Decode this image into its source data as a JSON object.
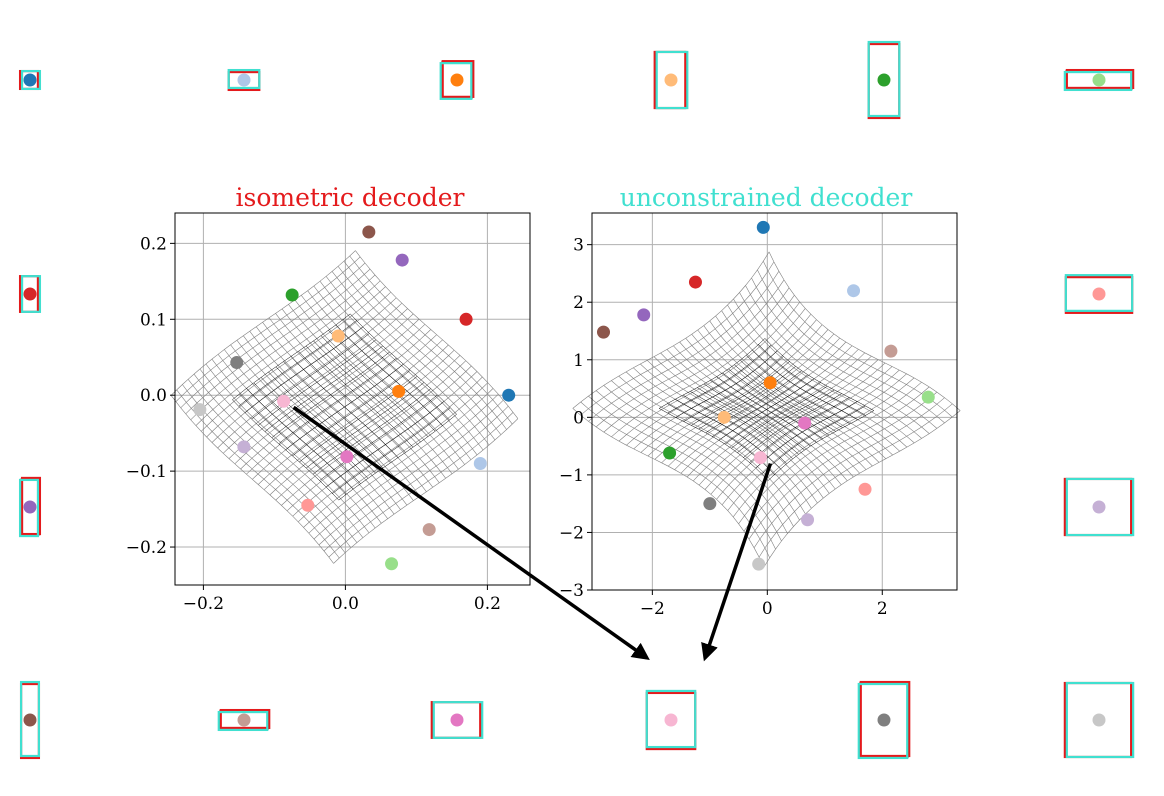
{
  "colors": {
    "isometric": "#e41a1c",
    "unconstrained": "#40e0d0",
    "ground_truth": "#000000",
    "mesh": "#808080",
    "grid": "#b0b0b0",
    "points": [
      "#1f77b4",
      "#aec7e8",
      "#ff7f0e",
      "#ffbb78",
      "#2ca02c",
      "#98df8a",
      "#d62728",
      "#ff9896",
      "#9467bd",
      "#c5b0d5",
      "#8c564b",
      "#c49c94",
      "#e377c2",
      "#f7b6d2",
      "#7f7f7f",
      "#c7c7c7"
    ]
  },
  "chart_data": [
    {
      "type": "scatter",
      "title": "isometric decoder",
      "title_color": "#e41a1c",
      "xlim": [
        -0.24,
        0.26
      ],
      "ylim": [
        -0.25,
        0.24
      ],
      "xticks": [
        -0.2,
        0.0,
        0.2
      ],
      "xtick_labels": [
        "−0.2",
        "0.0",
        "0.2"
      ],
      "yticks": [
        -0.2,
        -0.1,
        0.0,
        0.1,
        0.2
      ],
      "ytick_labels": [
        "−0.2",
        "−0.1",
        "0.0",
        "0.1",
        "0.2"
      ],
      "grid": true,
      "points": [
        {
          "x": 0.23,
          "y": 0.0,
          "color": "#1f77b4"
        },
        {
          "x": 0.19,
          "y": -0.09,
          "color": "#aec7e8"
        },
        {
          "x": 0.075,
          "y": 0.005,
          "color": "#ff7f0e"
        },
        {
          "x": -0.01,
          "y": 0.078,
          "color": "#ffbb78"
        },
        {
          "x": -0.075,
          "y": 0.132,
          "color": "#2ca02c"
        },
        {
          "x": 0.065,
          "y": -0.222,
          "color": "#98df8a"
        },
        {
          "x": 0.17,
          "y": 0.1,
          "color": "#d62728"
        },
        {
          "x": -0.053,
          "y": -0.145,
          "color": "#ff9896"
        },
        {
          "x": 0.08,
          "y": 0.178,
          "color": "#9467bd"
        },
        {
          "x": -0.143,
          "y": -0.068,
          "color": "#c5b0d5"
        },
        {
          "x": 0.033,
          "y": 0.215,
          "color": "#8c564b"
        },
        {
          "x": 0.118,
          "y": -0.177,
          "color": "#c49c94"
        },
        {
          "x": 0.002,
          "y": -0.081,
          "color": "#e377c2"
        },
        {
          "x": -0.087,
          "y": -0.008,
          "color": "#f7b6d2"
        },
        {
          "x": -0.153,
          "y": 0.043,
          "color": "#7f7f7f"
        },
        {
          "x": -0.205,
          "y": -0.019,
          "color": "#c7c7c7"
        }
      ]
    },
    {
      "type": "scatter",
      "title": "unconstrained decoder",
      "title_color": "#40e0d0",
      "xlim": [
        -3.05,
        3.3
      ],
      "ylim": [
        -3.0,
        3.55
      ],
      "xticks": [
        -2,
        0,
        2
      ],
      "xtick_labels": [
        "−2",
        "0",
        "2"
      ],
      "yticks": [
        -3,
        -2,
        -1,
        0,
        1,
        2,
        3
      ],
      "ytick_labels": [
        "−3",
        "−2",
        "−1",
        "0",
        "1",
        "2",
        "3"
      ],
      "grid": true,
      "points": [
        {
          "x": -0.07,
          "y": 3.3,
          "color": "#1f77b4"
        },
        {
          "x": 1.5,
          "y": 2.2,
          "color": "#aec7e8"
        },
        {
          "x": 0.05,
          "y": 0.6,
          "color": "#ff7f0e"
        },
        {
          "x": -0.75,
          "y": 0.0,
          "color": "#ffbb78"
        },
        {
          "x": -1.7,
          "y": -0.62,
          "color": "#2ca02c"
        },
        {
          "x": 2.8,
          "y": 0.35,
          "color": "#98df8a"
        },
        {
          "x": -1.25,
          "y": 2.35,
          "color": "#d62728"
        },
        {
          "x": 1.7,
          "y": -1.25,
          "color": "#ff9896"
        },
        {
          "x": -2.15,
          "y": 1.78,
          "color": "#9467bd"
        },
        {
          "x": 0.7,
          "y": -1.78,
          "color": "#c5b0d5"
        },
        {
          "x": -2.85,
          "y": 1.48,
          "color": "#8c564b"
        },
        {
          "x": 2.15,
          "y": 1.15,
          "color": "#c49c94"
        },
        {
          "x": 0.65,
          "y": -0.1,
          "color": "#e377c2"
        },
        {
          "x": -0.12,
          "y": -0.7,
          "color": "#f7b6d2"
        },
        {
          "x": -1.0,
          "y": -1.5,
          "color": "#7f7f7f"
        },
        {
          "x": -0.15,
          "y": -2.55,
          "color": "#c7c7c7"
        }
      ]
    }
  ],
  "rectangles": [
    {
      "w": 0.035,
      "h": 0.035,
      "color": "#1f77b4"
    },
    {
      "w": 0.06,
      "h": 0.035,
      "color": "#aec7e8"
    },
    {
      "w": 0.06,
      "h": 0.07,
      "color": "#ff7f0e"
    },
    {
      "w": 0.06,
      "h": 0.11,
      "color": "#ffbb78"
    },
    {
      "w": 0.06,
      "h": 0.145,
      "color": "#2ca02c"
    },
    {
      "w": 0.13,
      "h": 0.035,
      "color": "#98df8a"
    },
    {
      "w": 0.035,
      "h": 0.07,
      "color": "#d62728"
    },
    {
      "w": 0.13,
      "h": 0.07,
      "color": "#ff9896"
    },
    {
      "w": 0.035,
      "h": 0.11,
      "color": "#9467bd"
    },
    {
      "w": 0.13,
      "h": 0.11,
      "color": "#c5b0d5"
    },
    {
      "w": 0.035,
      "h": 0.145,
      "color": "#8c564b"
    },
    {
      "w": 0.095,
      "h": 0.035,
      "color": "#c49c94"
    },
    {
      "w": 0.095,
      "h": 0.07,
      "color": "#e377c2"
    },
    {
      "w": 0.095,
      "h": 0.11,
      "color": "#f7b6d2"
    },
    {
      "w": 0.095,
      "h": 0.145,
      "color": "#7f7f7f"
    },
    {
      "w": 0.13,
      "h": 0.145,
      "color": "#c7c7c7"
    }
  ],
  "arrows": [
    {
      "from_panel": 0,
      "from_point": 13,
      "to_rectangle": 13
    },
    {
      "from_panel": 1,
      "from_point": 13,
      "to_rectangle": 13
    }
  ]
}
